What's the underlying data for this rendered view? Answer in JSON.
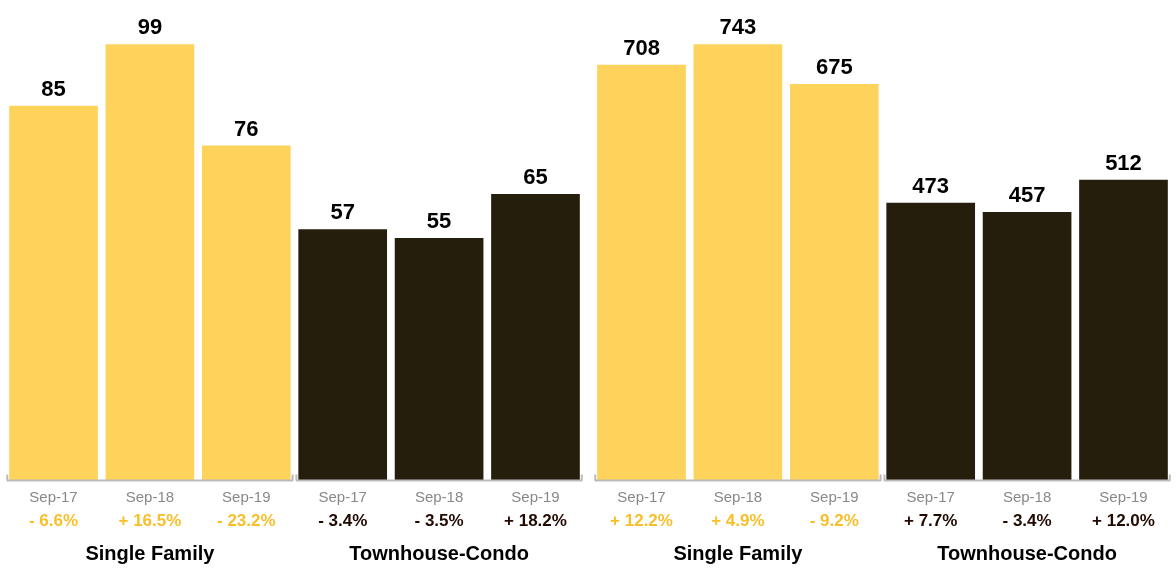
{
  "chart_data": [
    {
      "type": "bar",
      "categories": [
        "Sep-17",
        "Sep-18",
        "Sep-19",
        "Sep-17",
        "Sep-18",
        "Sep-19"
      ],
      "data_labels": true,
      "tick_labels": "x",
      "series": [
        {
          "color": "#fed35b",
          "values": [
            85,
            99,
            76,
            null,
            null,
            null
          ]
        },
        {
          "color": "#261e0c",
          "values": [
            null,
            null,
            null,
            57,
            55,
            65
          ]
        }
      ],
      "annotations": [
        "- 6.6%",
        "+ 16.5%",
        "- 23.2%",
        "- 3.4%",
        "- 3.5%",
        "+ 18.2%",
        "Single Family",
        "Townhouse-Condo"
      ]
    },
    {
      "type": "bar",
      "categories": [
        "Sep-17",
        "Sep-18",
        "Sep-19",
        "Sep-17",
        "Sep-18",
        "Sep-19"
      ],
      "data_labels": true,
      "tick_labels": "x",
      "series": [
        {
          "color": "#fed35b",
          "values": [
            708,
            743,
            675,
            null,
            null,
            null
          ]
        },
        {
          "color": "#261e0c",
          "values": [
            null,
            null,
            null,
            473,
            457,
            512
          ]
        }
      ],
      "annotations": [
        "+ 12.2%",
        "+ 4.9%",
        "- 9.2%",
        "+ 7.7%",
        "- 3.4%",
        "+ 12.0%",
        "Single Family",
        "Townhouse-Condo"
      ]
    }
  ]
}
